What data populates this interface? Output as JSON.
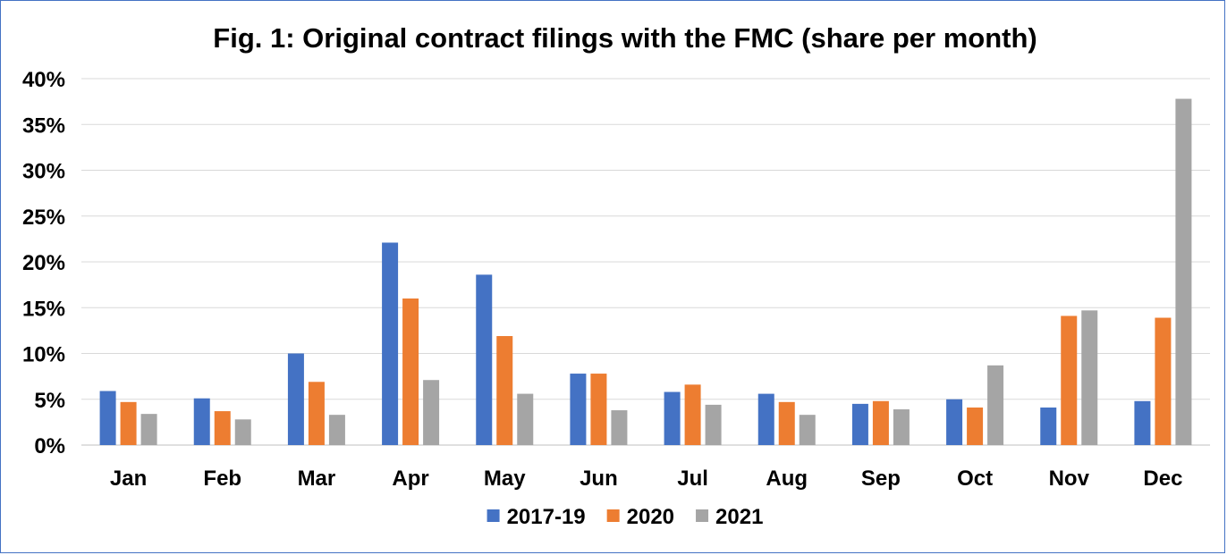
{
  "chart_data": {
    "type": "bar",
    "title": "Fig. 1: Original contract filings with the FMC (share per month)",
    "xlabel": "",
    "ylabel": "",
    "categories": [
      "Jan",
      "Feb",
      "Mar",
      "Apr",
      "May",
      "Jun",
      "Jul",
      "Aug",
      "Sep",
      "Oct",
      "Nov",
      "Dec"
    ],
    "series": [
      {
        "name": "2017-19",
        "color": "#4472C4",
        "values": [
          5.9,
          5.1,
          10.0,
          22.1,
          18.6,
          7.8,
          5.8,
          5.6,
          4.5,
          5.0,
          4.1,
          4.8
        ]
      },
      {
        "name": "2020",
        "color": "#ED7D31",
        "values": [
          4.7,
          3.7,
          6.9,
          16.0,
          11.9,
          7.8,
          6.6,
          4.7,
          4.8,
          4.1,
          14.1,
          13.9
        ]
      },
      {
        "name": "2021",
        "color": "#A5A5A5",
        "values": [
          3.4,
          2.8,
          3.3,
          7.1,
          5.6,
          3.8,
          4.4,
          3.3,
          3.9,
          8.7,
          14.7,
          37.8
        ]
      }
    ],
    "ylim": [
      0,
      40
    ],
    "yticks": [
      "0%",
      "5%",
      "10%",
      "15%",
      "20%",
      "25%",
      "30%",
      "35%",
      "40%"
    ],
    "grid": true,
    "legend_position": "bottom"
  }
}
